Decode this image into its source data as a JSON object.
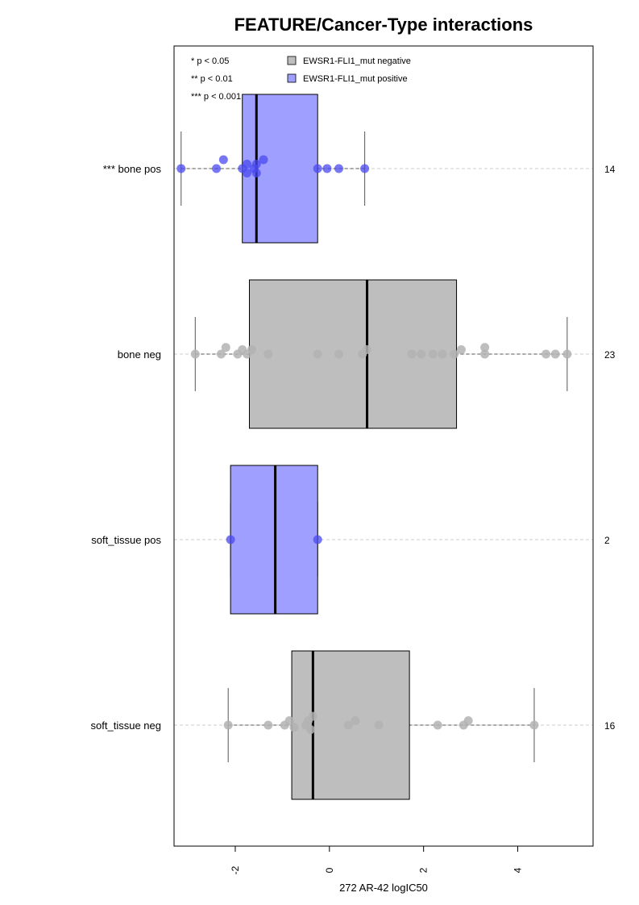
{
  "colors": {
    "negative_fill": "#bebebe",
    "positive_fill": "#9f9fff",
    "negative_point": "#b3b3b3",
    "positive_point": "#4a4af0",
    "grid": "#cccccc"
  },
  "chart_data": {
    "type": "boxplot",
    "orientation": "horizontal",
    "title": "FEATURE/Cancer-Type interactions",
    "xlabel": "272 AR-42 logIC50",
    "xlim": [
      -3.3,
      5.6
    ],
    "xticks": [
      -2,
      0,
      2,
      4
    ],
    "xtick_labels": [
      "-2",
      "0",
      "2",
      "4"
    ],
    "significance_legend": [
      "* p < 0.05",
      "** p < 0.01",
      "*** p < 0.001"
    ],
    "legend": [
      {
        "label": "EWSR1-FLI1_mut negative",
        "color": "#bebebe"
      },
      {
        "label": "EWSR1-FLI1_mut positive",
        "color": "#9f9fff"
      }
    ],
    "groups": [
      {
        "label": "*** bone pos",
        "count": "14",
        "status": "positive",
        "box": {
          "q1": -1.85,
          "median": -1.55,
          "q3": -0.25,
          "whisker_low": -3.15,
          "whisker_high": 0.75
        },
        "points": [
          {
            "x": -3.15,
            "dy": 0
          },
          {
            "x": -2.4,
            "dy": 0
          },
          {
            "x": -2.25,
            "dy": -0.2
          },
          {
            "x": -1.85,
            "dy": 0
          },
          {
            "x": -1.75,
            "dy": 0.1
          },
          {
            "x": -1.75,
            "dy": -0.1
          },
          {
            "x": -1.6,
            "dy": 0
          },
          {
            "x": -1.55,
            "dy": -0.1
          },
          {
            "x": -1.55,
            "dy": 0.1
          },
          {
            "x": -1.4,
            "dy": -0.2
          },
          {
            "x": -0.25,
            "dy": 0
          },
          {
            "x": -0.05,
            "dy": 0
          },
          {
            "x": 0.2,
            "dy": 0
          },
          {
            "x": 0.75,
            "dy": 0
          }
        ]
      },
      {
        "label": "bone neg",
        "count": "23",
        "status": "negative",
        "box": {
          "q1": -1.7,
          "median": 0.8,
          "q3": 2.7,
          "whisker_low": -2.85,
          "whisker_high": 5.05
        },
        "points": [
          {
            "x": -2.85,
            "dy": 0
          },
          {
            "x": -2.3,
            "dy": 0
          },
          {
            "x": -2.2,
            "dy": -0.15
          },
          {
            "x": -1.95,
            "dy": 0
          },
          {
            "x": -1.85,
            "dy": -0.1
          },
          {
            "x": -1.75,
            "dy": 0
          },
          {
            "x": -1.65,
            "dy": -0.1
          },
          {
            "x": -1.3,
            "dy": 0
          },
          {
            "x": -0.25,
            "dy": 0
          },
          {
            "x": 0.2,
            "dy": 0
          },
          {
            "x": 0.7,
            "dy": 0
          },
          {
            "x": 0.8,
            "dy": -0.1
          },
          {
            "x": 1.75,
            "dy": 0
          },
          {
            "x": 1.95,
            "dy": 0
          },
          {
            "x": 2.2,
            "dy": 0
          },
          {
            "x": 2.4,
            "dy": 0
          },
          {
            "x": 2.65,
            "dy": 0
          },
          {
            "x": 2.8,
            "dy": -0.1
          },
          {
            "x": 3.3,
            "dy": -0.15
          },
          {
            "x": 3.3,
            "dy": 0
          },
          {
            "x": 4.6,
            "dy": 0
          },
          {
            "x": 4.8,
            "dy": 0
          },
          {
            "x": 5.05,
            "dy": 0
          }
        ]
      },
      {
        "label": "soft_tissue pos",
        "count": "2",
        "status": "positive",
        "box": {
          "q1": -2.1,
          "median": -1.15,
          "q3": -0.25,
          "whisker_low": -2.1,
          "whisker_high": -0.25
        },
        "points": [
          {
            "x": -2.1,
            "dy": 0
          },
          {
            "x": -0.25,
            "dy": 0
          }
        ]
      },
      {
        "label": "soft_tissue neg",
        "count": "16",
        "status": "negative",
        "box": {
          "q1": -0.8,
          "median": -0.35,
          "q3": 1.7,
          "whisker_low": -2.15,
          "whisker_high": 4.35
        },
        "points": [
          {
            "x": -2.15,
            "dy": 0
          },
          {
            "x": -1.3,
            "dy": 0
          },
          {
            "x": -0.95,
            "dy": 0
          },
          {
            "x": -0.85,
            "dy": -0.1
          },
          {
            "x": -0.75,
            "dy": 0.05
          },
          {
            "x": -0.5,
            "dy": 0
          },
          {
            "x": -0.45,
            "dy": -0.1
          },
          {
            "x": -0.4,
            "dy": 0.1
          },
          {
            "x": -0.35,
            "dy": -0.2
          },
          {
            "x": 0.4,
            "dy": 0
          },
          {
            "x": 0.55,
            "dy": -0.1
          },
          {
            "x": 1.05,
            "dy": 0
          },
          {
            "x": 2.3,
            "dy": 0
          },
          {
            "x": 2.85,
            "dy": 0
          },
          {
            "x": 2.95,
            "dy": -0.1
          },
          {
            "x": 4.35,
            "dy": 0
          }
        ]
      }
    ]
  }
}
